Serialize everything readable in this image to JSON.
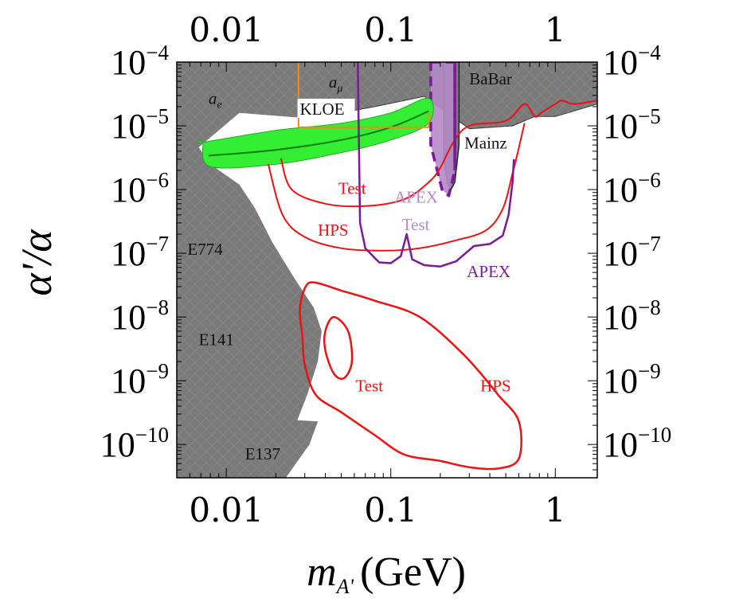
{
  "chart_data": {
    "type": "area",
    "xlabel": "m",
    "xlabel_sub": "A'",
    "xlabel_unit": "(GeV)",
    "ylabel": "α'/α",
    "x_scale": "log",
    "y_scale": "log",
    "xlim": [
      0.005,
      1.8
    ],
    "ylim": [
      3e-11,
      0.0001
    ],
    "x_ticks": [
      {
        "value": 0.01,
        "label": "0.01"
      },
      {
        "value": 0.1,
        "label": "0.1"
      },
      {
        "value": 1,
        "label": "1"
      }
    ],
    "y_ticks": [
      {
        "value": 0.0001,
        "base": "10",
        "exp": "−4"
      },
      {
        "value": 1e-05,
        "base": "10",
        "exp": "−5"
      },
      {
        "value": 1e-06,
        "base": "10",
        "exp": "−6"
      },
      {
        "value": 1e-07,
        "base": "10",
        "exp": "−7"
      },
      {
        "value": 1e-08,
        "base": "10",
        "exp": "−8"
      },
      {
        "value": 1e-09,
        "base": "10",
        "exp": "−9"
      },
      {
        "value": 1e-10,
        "base": "10",
        "exp": "−10"
      }
    ],
    "colors": {
      "excluded": "#7a7a7a",
      "green_band": "#33ee33",
      "green_center": "#0a7a0a",
      "hps": "#ee1111",
      "apex": "#7a1a9a",
      "apex_band": "#b58ac8",
      "kloe": "#f08a1a",
      "mainz": "#222222"
    },
    "region_labels": [
      {
        "text": "a",
        "sub": "e",
        "x": 0.0078,
        "y": 2.2e-05
      },
      {
        "text": "a",
        "sub": "μ",
        "x": 0.042,
        "y": 4e-05
      },
      {
        "text": "E774",
        "x": 0.0058,
        "y": 9.5e-08
      },
      {
        "text": "E141",
        "x": 0.0068,
        "y": 3.6e-09
      },
      {
        "text": "E137",
        "x": 0.013,
        "y": 5.8e-11
      },
      {
        "text": "BaBar",
        "x": 0.3,
        "y": 4.5e-05
      },
      {
        "text": "Mainz",
        "x": 0.28,
        "y": 4.4e-06
      },
      {
        "text": "KLOE",
        "x": 0.028,
        "y": 1.5e-05
      }
    ],
    "curve_labels": [
      {
        "text": "Test",
        "color": "hps",
        "x": 0.048,
        "y": 8.5e-07
      },
      {
        "text": "HPS",
        "color": "hps",
        "x": 0.036,
        "y": 1.9e-07
      },
      {
        "text": "APEX",
        "color": "apex_band",
        "x": 0.105,
        "y": 6.2e-07
      },
      {
        "text": "Test",
        "color": "apex_band",
        "x": 0.117,
        "y": 2.3e-07
      },
      {
        "text": "APEX",
        "color": "apex",
        "x": 0.29,
        "y": 4.2e-08
      },
      {
        "text": "Test",
        "color": "hps",
        "x": 0.061,
        "y": 6.8e-10
      },
      {
        "text": "HPS",
        "color": "hps",
        "x": 0.35,
        "y": 6.8e-10
      }
    ],
    "series": [
      {
        "id": "excluded-left",
        "kind": "filled",
        "points": [
          [
            0.005,
            0.0001
          ],
          [
            0.0275,
            0.0001
          ],
          [
            0.0275,
            1.35e-05
          ],
          [
            0.012,
            1.6e-05
          ],
          [
            0.0068,
            4.6e-06
          ],
          [
            0.0078,
            2.6e-06
          ],
          [
            0.012,
            1.2e-06
          ],
          [
            0.015,
            5e-07
          ],
          [
            0.019,
            1.5e-07
          ],
          [
            0.026,
            4e-08
          ],
          [
            0.034,
            1.4e-08
          ],
          [
            0.038,
            6e-09
          ],
          [
            0.036,
            2e-09
          ],
          [
            0.031,
            6e-10
          ],
          [
            0.027,
            2.4e-10
          ],
          [
            0.036,
            2.3e-10
          ],
          [
            0.032,
            1e-10
          ],
          [
            0.023,
            3e-11
          ],
          [
            0.005,
            3e-11
          ]
        ]
      },
      {
        "id": "excluded-amu-babar",
        "kind": "filled",
        "points": [
          [
            0.0275,
            0.0001
          ],
          [
            1.8,
            0.0001
          ],
          [
            1.8,
            2.2e-05
          ],
          [
            1.0,
            1.4e-05
          ],
          [
            0.75,
            1.4e-05
          ],
          [
            0.55,
            1e-05
          ],
          [
            0.3,
            9e-06
          ],
          [
            0.16,
            2.9e-05
          ],
          [
            0.08,
            2e-05
          ],
          [
            0.04,
            1.45e-05
          ],
          [
            0.0275,
            1.35e-05
          ]
        ]
      },
      {
        "id": "mainz",
        "kind": "filled",
        "points": [
          [
            0.21,
            0.0001
          ],
          [
            0.26,
            0.0001
          ],
          [
            0.26,
            5e-06
          ],
          [
            0.245,
            1.3e-06
          ],
          [
            0.232,
            1e-06
          ],
          [
            0.22,
            1.3e-06
          ],
          [
            0.21,
            3e-06
          ]
        ]
      },
      {
        "id": "apex-test-band",
        "kind": "filled",
        "points": [
          [
            0.175,
            0.0001
          ],
          [
            0.245,
            0.0001
          ],
          [
            0.245,
            2e-06
          ],
          [
            0.225,
            8e-07
          ],
          [
            0.205,
            1e-06
          ],
          [
            0.175,
            5e-06
          ]
        ]
      },
      {
        "id": "green-band",
        "kind": "band",
        "upper": [
          [
            0.0072,
            5.5e-06
          ],
          [
            0.02,
            8.5e-06
          ],
          [
            0.05,
            1.1e-05
          ],
          [
            0.1,
            1.6e-05
          ],
          [
            0.17,
            2.7e-05
          ]
        ],
        "lower": [
          [
            0.0072,
            5.5e-06
          ],
          [
            0.008,
            2.3e-06
          ],
          [
            0.02,
            2.5e-06
          ],
          [
            0.05,
            3.8e-06
          ],
          [
            0.1,
            6e-06
          ],
          [
            0.17,
            1.1e-05
          ]
        ]
      },
      {
        "id": "green-center",
        "kind": "line",
        "points": [
          [
            0.0078,
            3.4e-06
          ],
          [
            0.02,
            4.2e-06
          ],
          [
            0.05,
            6e-06
          ],
          [
            0.1,
            9.5e-06
          ],
          [
            0.17,
            1.7e-05
          ]
        ]
      },
      {
        "id": "kloe",
        "kind": "line",
        "points": [
          [
            0.0275,
            0.0001
          ],
          [
            0.0275,
            9.5e-06
          ],
          [
            0.17,
            9.5e-06
          ],
          [
            0.17,
            1.6e-05
          ]
        ]
      },
      {
        "id": "hps-test-upper",
        "kind": "line",
        "points": [
          [
            0.0215,
            3.1e-06
          ],
          [
            0.025,
            1e-06
          ],
          [
            0.04,
            6e-07
          ],
          [
            0.07,
            5.5e-07
          ],
          [
            0.12,
            7e-07
          ],
          [
            0.17,
            1.3e-06
          ],
          [
            0.2,
            2.2e-06
          ],
          [
            0.24,
            5.5e-06
          ],
          [
            0.3,
            1e-05
          ],
          [
            0.5,
            1.2e-05
          ],
          [
            0.65,
            2.2e-05
          ],
          [
            0.75,
            1.4e-05
          ],
          [
            0.82,
            1.6e-05
          ],
          [
            1.0,
            2.2e-05
          ],
          [
            1.1,
            2.5e-05
          ],
          [
            1.3,
            2.2e-05
          ],
          [
            1.8,
            2.5e-05
          ]
        ]
      },
      {
        "id": "hps-lower",
        "kind": "line",
        "points": [
          [
            0.018,
            2.5e-06
          ],
          [
            0.022,
            4e-07
          ],
          [
            0.03,
            1.8e-07
          ],
          [
            0.05,
            1.2e-07
          ],
          [
            0.09,
            1.1e-07
          ],
          [
            0.15,
            1.2e-07
          ],
          [
            0.25,
            1.6e-07
          ],
          [
            0.38,
            2.3e-07
          ],
          [
            0.48,
            5e-07
          ],
          [
            0.55,
            1.8e-06
          ],
          [
            0.6,
            4.5e-06
          ],
          [
            0.65,
            1.1e-05
          ]
        ]
      },
      {
        "id": "apex-full",
        "kind": "line",
        "points": [
          [
            0.063,
            0.0001
          ],
          [
            0.065,
            3e-07
          ],
          [
            0.07,
            1.2e-07
          ],
          [
            0.085,
            7.2e-08
          ],
          [
            0.1,
            7e-08
          ],
          [
            0.115,
            9e-08
          ],
          [
            0.125,
            2e-07
          ],
          [
            0.135,
            8e-08
          ],
          [
            0.16,
            6.5e-08
          ],
          [
            0.2,
            6.2e-08
          ],
          [
            0.25,
            7.5e-08
          ],
          [
            0.32,
            1.3e-07
          ],
          [
            0.4,
            1.4e-07
          ],
          [
            0.48,
            1.9e-07
          ],
          [
            0.52,
            4e-07
          ],
          [
            0.55,
            1.3e-06
          ],
          [
            0.56,
            3e-06
          ]
        ]
      },
      {
        "id": "apex-test-right-edge",
        "kind": "line",
        "points": [
          [
            0.245,
            0.0001
          ],
          [
            0.245,
            2e-06
          ]
        ]
      },
      {
        "id": "hps-island-outer",
        "kind": "closed",
        "points": [
          [
            0.028,
            1.3e-08
          ],
          [
            0.03,
            2.8e-08
          ],
          [
            0.034,
            3.5e-08
          ],
          [
            0.05,
            2.6e-08
          ],
          [
            0.08,
            1.8e-08
          ],
          [
            0.15,
            1e-08
          ],
          [
            0.28,
            2.5e-09
          ],
          [
            0.45,
            6e-10
          ],
          [
            0.6,
            2.3e-10
          ],
          [
            0.6,
            6e-11
          ],
          [
            0.45,
            4.2e-11
          ],
          [
            0.3,
            4.4e-11
          ],
          [
            0.2,
            5.5e-11
          ],
          [
            0.12,
            7e-11
          ],
          [
            0.08,
            1.4e-10
          ],
          [
            0.05,
            3.2e-10
          ],
          [
            0.035,
            6e-10
          ],
          [
            0.03,
            1.8e-09
          ],
          [
            0.029,
            5e-09
          ]
        ]
      },
      {
        "id": "hps-island-inner",
        "kind": "closed",
        "points": [
          [
            0.04,
            6e-09
          ],
          [
            0.045,
            1e-08
          ],
          [
            0.055,
            6e-09
          ],
          [
            0.058,
            2e-09
          ],
          [
            0.052,
            1.1e-09
          ],
          [
            0.045,
            1.3e-09
          ],
          [
            0.04,
            3e-09
          ]
        ]
      }
    ]
  }
}
